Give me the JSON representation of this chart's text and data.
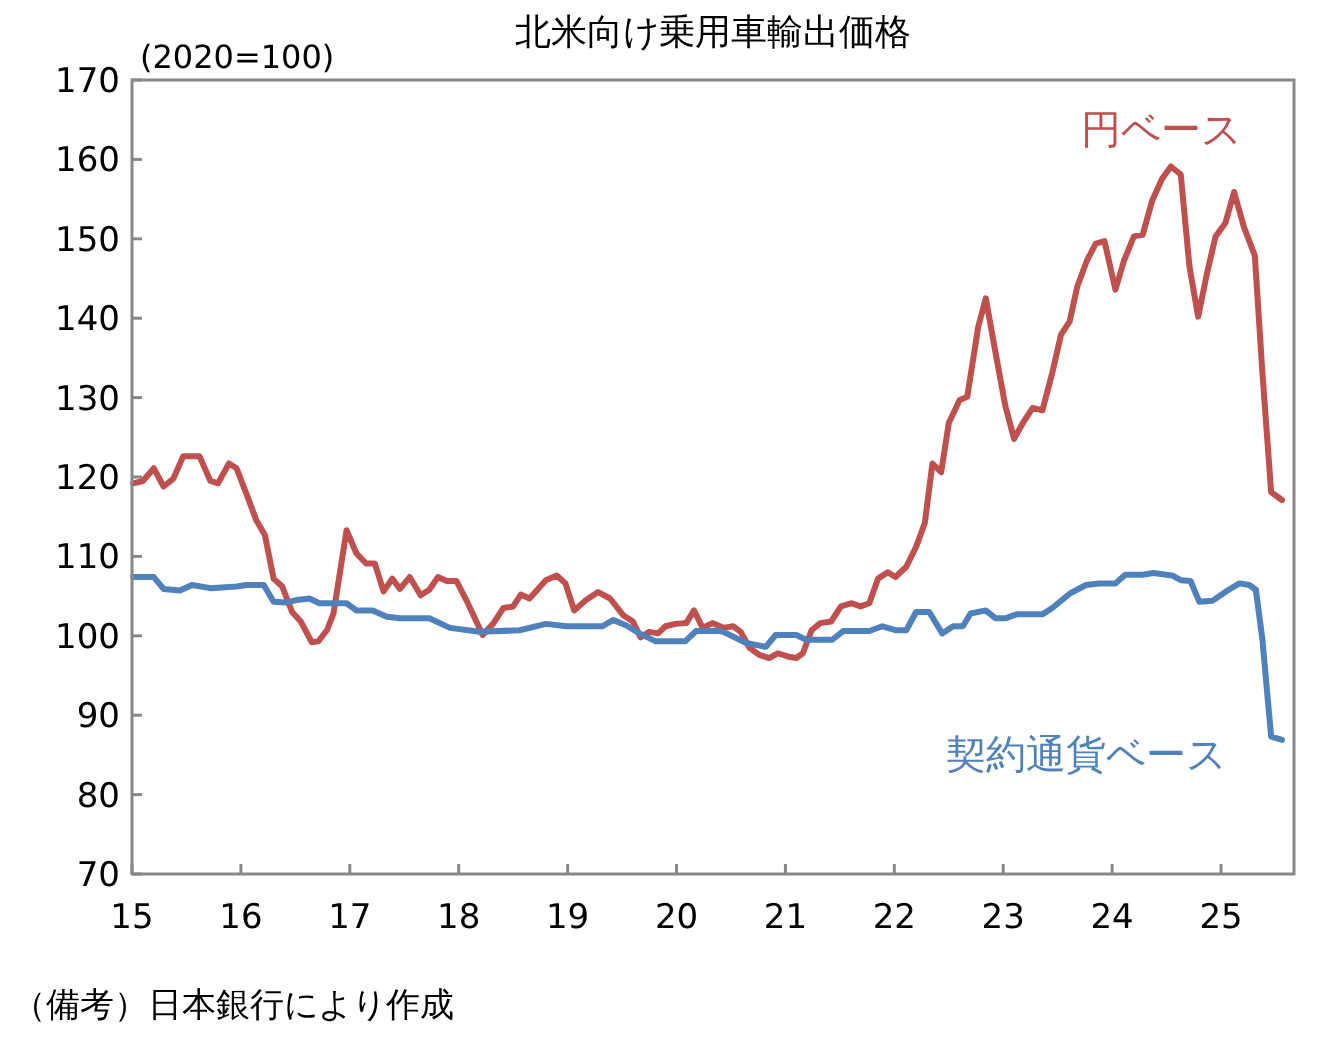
{
  "chart_data": {
    "type": "line",
    "title": "北米向け乗用車輸出価格",
    "ylabel": "(2020=100)",
    "xlim": [
      2015,
      2025.67
    ],
    "xticks": [
      {
        "value": 2015,
        "label": "15"
      },
      {
        "value": 2016,
        "label": "16"
      },
      {
        "value": 2017,
        "label": "17"
      },
      {
        "value": 2018,
        "label": "18"
      },
      {
        "value": 2019,
        "label": "19"
      },
      {
        "value": 2020,
        "label": "20"
      },
      {
        "value": 2021,
        "label": "21"
      },
      {
        "value": 2022,
        "label": "22"
      },
      {
        "value": 2023,
        "label": "23"
      },
      {
        "value": 2024,
        "label": "24"
      },
      {
        "value": 2025,
        "label": "25"
      }
    ],
    "ylim": [
      70,
      170
    ],
    "yticks": [
      70,
      80,
      90,
      100,
      110,
      120,
      130,
      140,
      150,
      160,
      170
    ],
    "annotations": [
      "（備考）日本銀行により作成"
    ],
    "series": [
      {
        "name": "円ベース",
        "color": "#c0504d",
        "x": [
          2015.01,
          2015.1,
          2015.2,
          2015.29,
          2015.38,
          2015.47,
          2015.62,
          2015.72,
          2015.79,
          2015.89,
          2015.96,
          2016.05,
          2016.14,
          2016.22,
          2016.3,
          2016.38,
          2016.47,
          2016.55,
          2016.65,
          2016.71,
          2016.79,
          2016.85,
          2016.97,
          2017.06,
          2017.15,
          2017.23,
          2017.31,
          2017.39,
          2017.46,
          2017.55,
          2017.65,
          2017.73,
          2017.81,
          2017.89,
          2017.98,
          2018.07,
          2018.22,
          2018.32,
          2018.41,
          2018.5,
          2018.57,
          2018.65,
          2018.8,
          2018.9,
          2018.98,
          2019.06,
          2019.17,
          2019.28,
          2019.39,
          2019.51,
          2019.6,
          2019.67,
          2019.75,
          2019.83,
          2019.9,
          2019.99,
          2020.09,
          2020.16,
          2020.24,
          2020.33,
          2020.43,
          2020.52,
          2020.59,
          2020.67,
          2020.76,
          2020.85,
          2020.93,
          2021.02,
          2021.1,
          2021.16,
          2021.24,
          2021.32,
          2021.42,
          2021.51,
          2021.61,
          2021.69,
          2021.77,
          2021.85,
          2021.94,
          2022.01,
          2022.11,
          2022.2,
          2022.28,
          2022.35,
          2022.43,
          2022.5,
          2022.6,
          2022.67,
          2022.77,
          2022.84,
          2022.93,
          2023.02,
          2023.1,
          2023.18,
          2023.27,
          2023.36,
          2023.45,
          2023.53,
          2023.61,
          2023.68,
          2023.77,
          2023.85,
          2023.93,
          2024.03,
          2024.11,
          2024.2,
          2024.28,
          2024.37,
          2024.46,
          2024.54,
          2024.63,
          2024.71,
          2024.79,
          2024.87,
          2024.95,
          2025.04,
          2025.12,
          2025.21,
          2025.31,
          2025.38,
          2025.46,
          2025.56
        ],
        "values": [
          119.2,
          119.5,
          121.1,
          118.8,
          119.8,
          122.6,
          122.6,
          119.5,
          119.2,
          121.7,
          121.1,
          117.9,
          114.6,
          112.7,
          107.2,
          106.2,
          103.0,
          101.8,
          99.2,
          99.3,
          100.7,
          102.8,
          113.3,
          110.4,
          109.1,
          109.1,
          105.6,
          107.2,
          105.9,
          107.4,
          105.1,
          105.8,
          107.4,
          106.9,
          106.9,
          104.5,
          100.1,
          101.6,
          103.5,
          103.7,
          105.2,
          104.7,
          107.0,
          107.6,
          106.6,
          103.2,
          104.5,
          105.5,
          104.7,
          102.6,
          101.8,
          99.8,
          100.5,
          100.3,
          101.2,
          101.5,
          101.6,
          103.2,
          101.0,
          101.6,
          101.0,
          101.2,
          100.5,
          98.5,
          97.6,
          97.2,
          97.8,
          97.4,
          97.2,
          97.8,
          100.7,
          101.6,
          101.8,
          103.7,
          104.1,
          103.7,
          104.1,
          107.2,
          108.0,
          107.4,
          108.7,
          111.2,
          114.2,
          121.7,
          120.6,
          126.8,
          129.7,
          130.1,
          138.9,
          142.5,
          135.6,
          128.9,
          124.8,
          126.8,
          128.7,
          128.4,
          133.1,
          137.9,
          139.6,
          144.0,
          147.3,
          149.4,
          149.7,
          143.6,
          147.3,
          150.3,
          150.5,
          154.9,
          157.6,
          159.1,
          158.1,
          146.5,
          140.2,
          145.6,
          150.3,
          152.0,
          155.9,
          151.5,
          147.9,
          133.1,
          118.1,
          117.1
        ]
      },
      {
        "name": "契約通貨ベース",
        "color": "#4f81bd",
        "x": [
          2015.01,
          2015.2,
          2015.29,
          2015.44,
          2015.55,
          2015.72,
          2015.96,
          2016.05,
          2016.21,
          2016.3,
          2016.42,
          2016.51,
          2016.63,
          2016.72,
          2016.97,
          2017.06,
          2017.21,
          2017.34,
          2017.46,
          2017.73,
          2017.92,
          2018.19,
          2018.56,
          2018.8,
          2018.99,
          2019.32,
          2019.42,
          2019.54,
          2019.66,
          2019.81,
          2020.08,
          2020.18,
          2020.39,
          2020.43,
          2020.64,
          2020.82,
          2020.91,
          2021.1,
          2021.19,
          2021.43,
          2021.53,
          2021.77,
          2021.89,
          2022.01,
          2022.11,
          2022.2,
          2022.32,
          2022.44,
          2022.54,
          2022.63,
          2022.7,
          2022.84,
          2022.93,
          2023.02,
          2023.12,
          2023.36,
          2023.45,
          2023.61,
          2023.76,
          2023.88,
          2024.03,
          2024.12,
          2024.28,
          2024.38,
          2024.55,
          2024.63,
          2024.72,
          2024.8,
          2024.92,
          2025.07,
          2025.17,
          2025.26,
          2025.32,
          2025.38,
          2025.46,
          2025.56
        ],
        "values": [
          107.4,
          107.4,
          105.9,
          105.7,
          106.4,
          106.0,
          106.2,
          106.4,
          106.4,
          104.3,
          104.2,
          104.5,
          104.7,
          104.1,
          104.1,
          103.2,
          103.2,
          102.4,
          102.2,
          102.2,
          101.0,
          100.5,
          100.7,
          101.5,
          101.2,
          101.2,
          102.0,
          101.3,
          100.3,
          99.3,
          99.3,
          100.6,
          100.6,
          100.5,
          99.1,
          98.6,
          100.1,
          100.1,
          99.5,
          99.5,
          100.6,
          100.6,
          101.2,
          100.7,
          100.7,
          103.0,
          103.0,
          100.3,
          101.2,
          101.2,
          102.8,
          103.2,
          102.2,
          102.2,
          102.7,
          102.7,
          103.5,
          105.3,
          106.4,
          106.6,
          106.6,
          107.7,
          107.7,
          107.9,
          107.6,
          107.0,
          106.9,
          104.3,
          104.4,
          105.8,
          106.6,
          106.4,
          105.8,
          99.5,
          87.3,
          86.9
        ]
      }
    ]
  }
}
